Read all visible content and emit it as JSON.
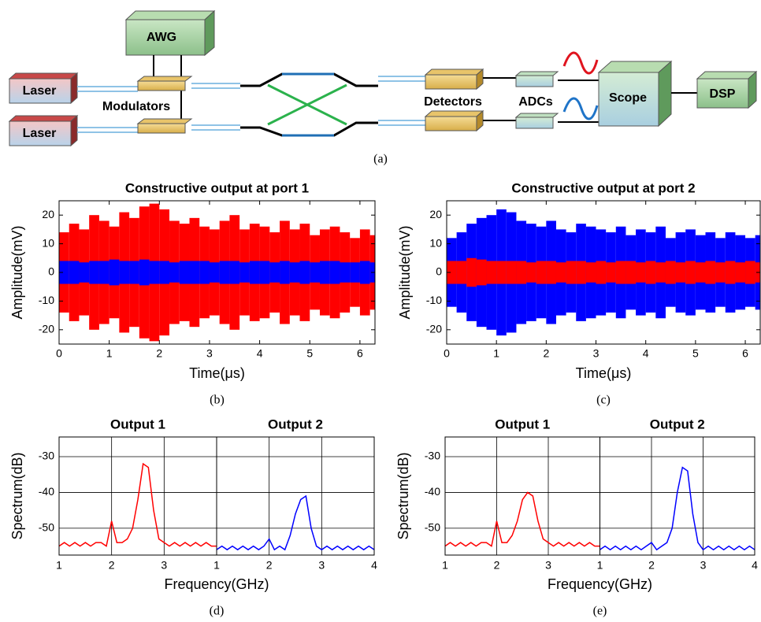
{
  "diagram": {
    "awg": "AWG",
    "lasers": [
      "Laser",
      "Laser"
    ],
    "modulators": "Modulators",
    "detectors": "Detectors",
    "adcs": "ADCs",
    "scope": "Scope",
    "dsp": "DSP",
    "caption": "(a)"
  },
  "chart_data": [
    {
      "type": "envelope",
      "title": "Constructive output at port 1",
      "xlabel": "Time(μs)",
      "ylabel": "Amplitude(mV)",
      "caption": "(b)",
      "xlim": [
        0,
        6.3
      ],
      "xticks": [
        0,
        1,
        2,
        3,
        4,
        5,
        6
      ],
      "ylim": [
        -25,
        25
      ],
      "yticks": [
        -20,
        -10,
        0,
        10,
        20
      ],
      "x": [
        0,
        0.2,
        0.4,
        0.6,
        0.8,
        1,
        1.2,
        1.4,
        1.6,
        1.8,
        2,
        2.2,
        2.4,
        2.6,
        2.8,
        3,
        3.2,
        3.4,
        3.6,
        3.8,
        4,
        4.2,
        4.4,
        4.6,
        4.8,
        5,
        5.2,
        5.4,
        5.6,
        5.8,
        6,
        6.2
      ],
      "series": [
        {
          "color": "#ff0000",
          "values": [
            14,
            17,
            15,
            20,
            18,
            16,
            21,
            19,
            23,
            24,
            22,
            18,
            17,
            19,
            16,
            15,
            18,
            20,
            15,
            17,
            16,
            14,
            18,
            15,
            17,
            13,
            15,
            16,
            14,
            12,
            15,
            13
          ]
        },
        {
          "color": "#0000ff",
          "values": [
            4,
            4,
            3.5,
            4,
            4,
            4.5,
            4,
            4,
            4.5,
            4,
            4,
            3.5,
            4,
            4,
            4,
            3.5,
            4,
            4,
            3.5,
            4,
            4,
            3.5,
            4,
            3.5,
            4,
            3.5,
            4,
            4,
            3.5,
            3.5,
            4,
            3.5
          ]
        }
      ]
    },
    {
      "type": "envelope",
      "title": "Constructive output at port 2",
      "xlabel": "Time(μs)",
      "ylabel": "Amplitude(mV)",
      "caption": "(c)",
      "xlim": [
        0,
        6.3
      ],
      "xticks": [
        0,
        1,
        2,
        3,
        4,
        5,
        6
      ],
      "ylim": [
        -25,
        25
      ],
      "yticks": [
        -20,
        -10,
        0,
        10,
        20
      ],
      "x": [
        0,
        0.2,
        0.4,
        0.6,
        0.8,
        1,
        1.2,
        1.4,
        1.6,
        1.8,
        2,
        2.2,
        2.4,
        2.6,
        2.8,
        3,
        3.2,
        3.4,
        3.6,
        3.8,
        4,
        4.2,
        4.4,
        4.6,
        4.8,
        5,
        5.2,
        5.4,
        5.6,
        5.8,
        6,
        6.2
      ],
      "series": [
        {
          "color": "#0000ff",
          "values": [
            12,
            14,
            17,
            19,
            20,
            22,
            21,
            18,
            17,
            16,
            18,
            15,
            14,
            17,
            16,
            15,
            14,
            16,
            13,
            15,
            14,
            16,
            12,
            14,
            15,
            13,
            14,
            12,
            14,
            13,
            12,
            13
          ]
        },
        {
          "color": "#ff0000",
          "values": [
            4,
            4,
            5,
            4.5,
            4,
            4,
            4,
            4,
            3.5,
            4,
            4,
            3.5,
            4,
            4,
            3.5,
            4,
            3.5,
            4,
            4,
            3.5,
            4,
            3.5,
            4,
            3.5,
            4,
            3.5,
            4,
            3.5,
            4,
            3.5,
            4,
            3.5
          ]
        }
      ]
    },
    {
      "type": "spectrum",
      "xlabel": "Frequency(GHz)",
      "ylabel": "Spectrum(dB)",
      "caption": "(d)",
      "grid": true,
      "ylim": [
        -57.5,
        -24.5
      ],
      "yticks": [
        -50,
        -40,
        -30
      ],
      "panels": [
        {
          "title": "Output 1",
          "color": "#ff0000",
          "xlim": [
            1,
            4
          ],
          "xticks": [
            1,
            2,
            3
          ],
          "x": [
            1,
            1.1,
            1.2,
            1.3,
            1.4,
            1.5,
            1.6,
            1.7,
            1.8,
            1.9,
            2,
            2.1,
            2.2,
            2.3,
            2.4,
            2.5,
            2.6,
            2.7,
            2.8,
            2.9,
            3,
            3.1,
            3.2,
            3.3,
            3.4,
            3.5,
            3.6,
            3.7,
            3.8,
            3.9,
            4
          ],
          "values": [
            -55,
            -54,
            -55,
            -54,
            -55,
            -54,
            -55,
            -54,
            -54,
            -55,
            -48,
            -54,
            -54,
            -53,
            -50,
            -42,
            -32,
            -33,
            -45,
            -53,
            -54,
            -55,
            -54,
            -55,
            -54,
            -55,
            -54,
            -55,
            -54,
            -55,
            -55
          ]
        },
        {
          "title": "Output 2",
          "color": "#0000ff",
          "xlim": [
            1,
            4
          ],
          "xticks": [
            1,
            2,
            3,
            4
          ],
          "x": [
            1,
            1.1,
            1.2,
            1.3,
            1.4,
            1.5,
            1.6,
            1.7,
            1.8,
            1.9,
            2,
            2.1,
            2.2,
            2.3,
            2.4,
            2.5,
            2.6,
            2.7,
            2.8,
            2.9,
            3,
            3.1,
            3.2,
            3.3,
            3.4,
            3.5,
            3.6,
            3.7,
            3.8,
            3.9,
            4
          ],
          "values": [
            -56,
            -55,
            -56,
            -55,
            -56,
            -55,
            -56,
            -55,
            -56,
            -55,
            -53,
            -56,
            -55,
            -56,
            -52,
            -46,
            -42,
            -41,
            -50,
            -55,
            -56,
            -55,
            -56,
            -55,
            -56,
            -55,
            -56,
            -55,
            -56,
            -55,
            -56
          ]
        }
      ]
    },
    {
      "type": "spectrum",
      "xlabel": "Frequency(GHz)",
      "ylabel": "Spectrum(dB)",
      "caption": "(e)",
      "grid": true,
      "ylim": [
        -57.5,
        -24.5
      ],
      "yticks": [
        -50,
        -40,
        -30
      ],
      "panels": [
        {
          "title": "Output 1",
          "color": "#ff0000",
          "xlim": [
            1,
            4
          ],
          "xticks": [
            1,
            2,
            3
          ],
          "x": [
            1,
            1.1,
            1.2,
            1.3,
            1.4,
            1.5,
            1.6,
            1.7,
            1.8,
            1.9,
            2,
            2.1,
            2.2,
            2.3,
            2.4,
            2.5,
            2.6,
            2.7,
            2.8,
            2.9,
            3,
            3.1,
            3.2,
            3.3,
            3.4,
            3.5,
            3.6,
            3.7,
            3.8,
            3.9,
            4
          ],
          "values": [
            -55,
            -54,
            -55,
            -54,
            -55,
            -54,
            -55,
            -54,
            -54,
            -55,
            -48,
            -54,
            -54,
            -52,
            -48,
            -42,
            -40,
            -41,
            -48,
            -53,
            -54,
            -55,
            -54,
            -55,
            -54,
            -55,
            -54,
            -55,
            -54,
            -55,
            -55
          ]
        },
        {
          "title": "Output 2",
          "color": "#0000ff",
          "xlim": [
            1,
            4
          ],
          "xticks": [
            1,
            2,
            3,
            4
          ],
          "x": [
            1,
            1.1,
            1.2,
            1.3,
            1.4,
            1.5,
            1.6,
            1.7,
            1.8,
            1.9,
            2,
            2.1,
            2.2,
            2.3,
            2.4,
            2.5,
            2.6,
            2.7,
            2.8,
            2.9,
            3,
            3.1,
            3.2,
            3.3,
            3.4,
            3.5,
            3.6,
            3.7,
            3.8,
            3.9,
            4
          ],
          "values": [
            -56,
            -55,
            -56,
            -55,
            -56,
            -55,
            -56,
            -55,
            -56,
            -55,
            -54,
            -56,
            -55,
            -54,
            -50,
            -40,
            -33,
            -34,
            -46,
            -54,
            -56,
            -55,
            -56,
            -55,
            -56,
            -55,
            -56,
            -55,
            -56,
            -55,
            -56
          ]
        }
      ]
    }
  ]
}
